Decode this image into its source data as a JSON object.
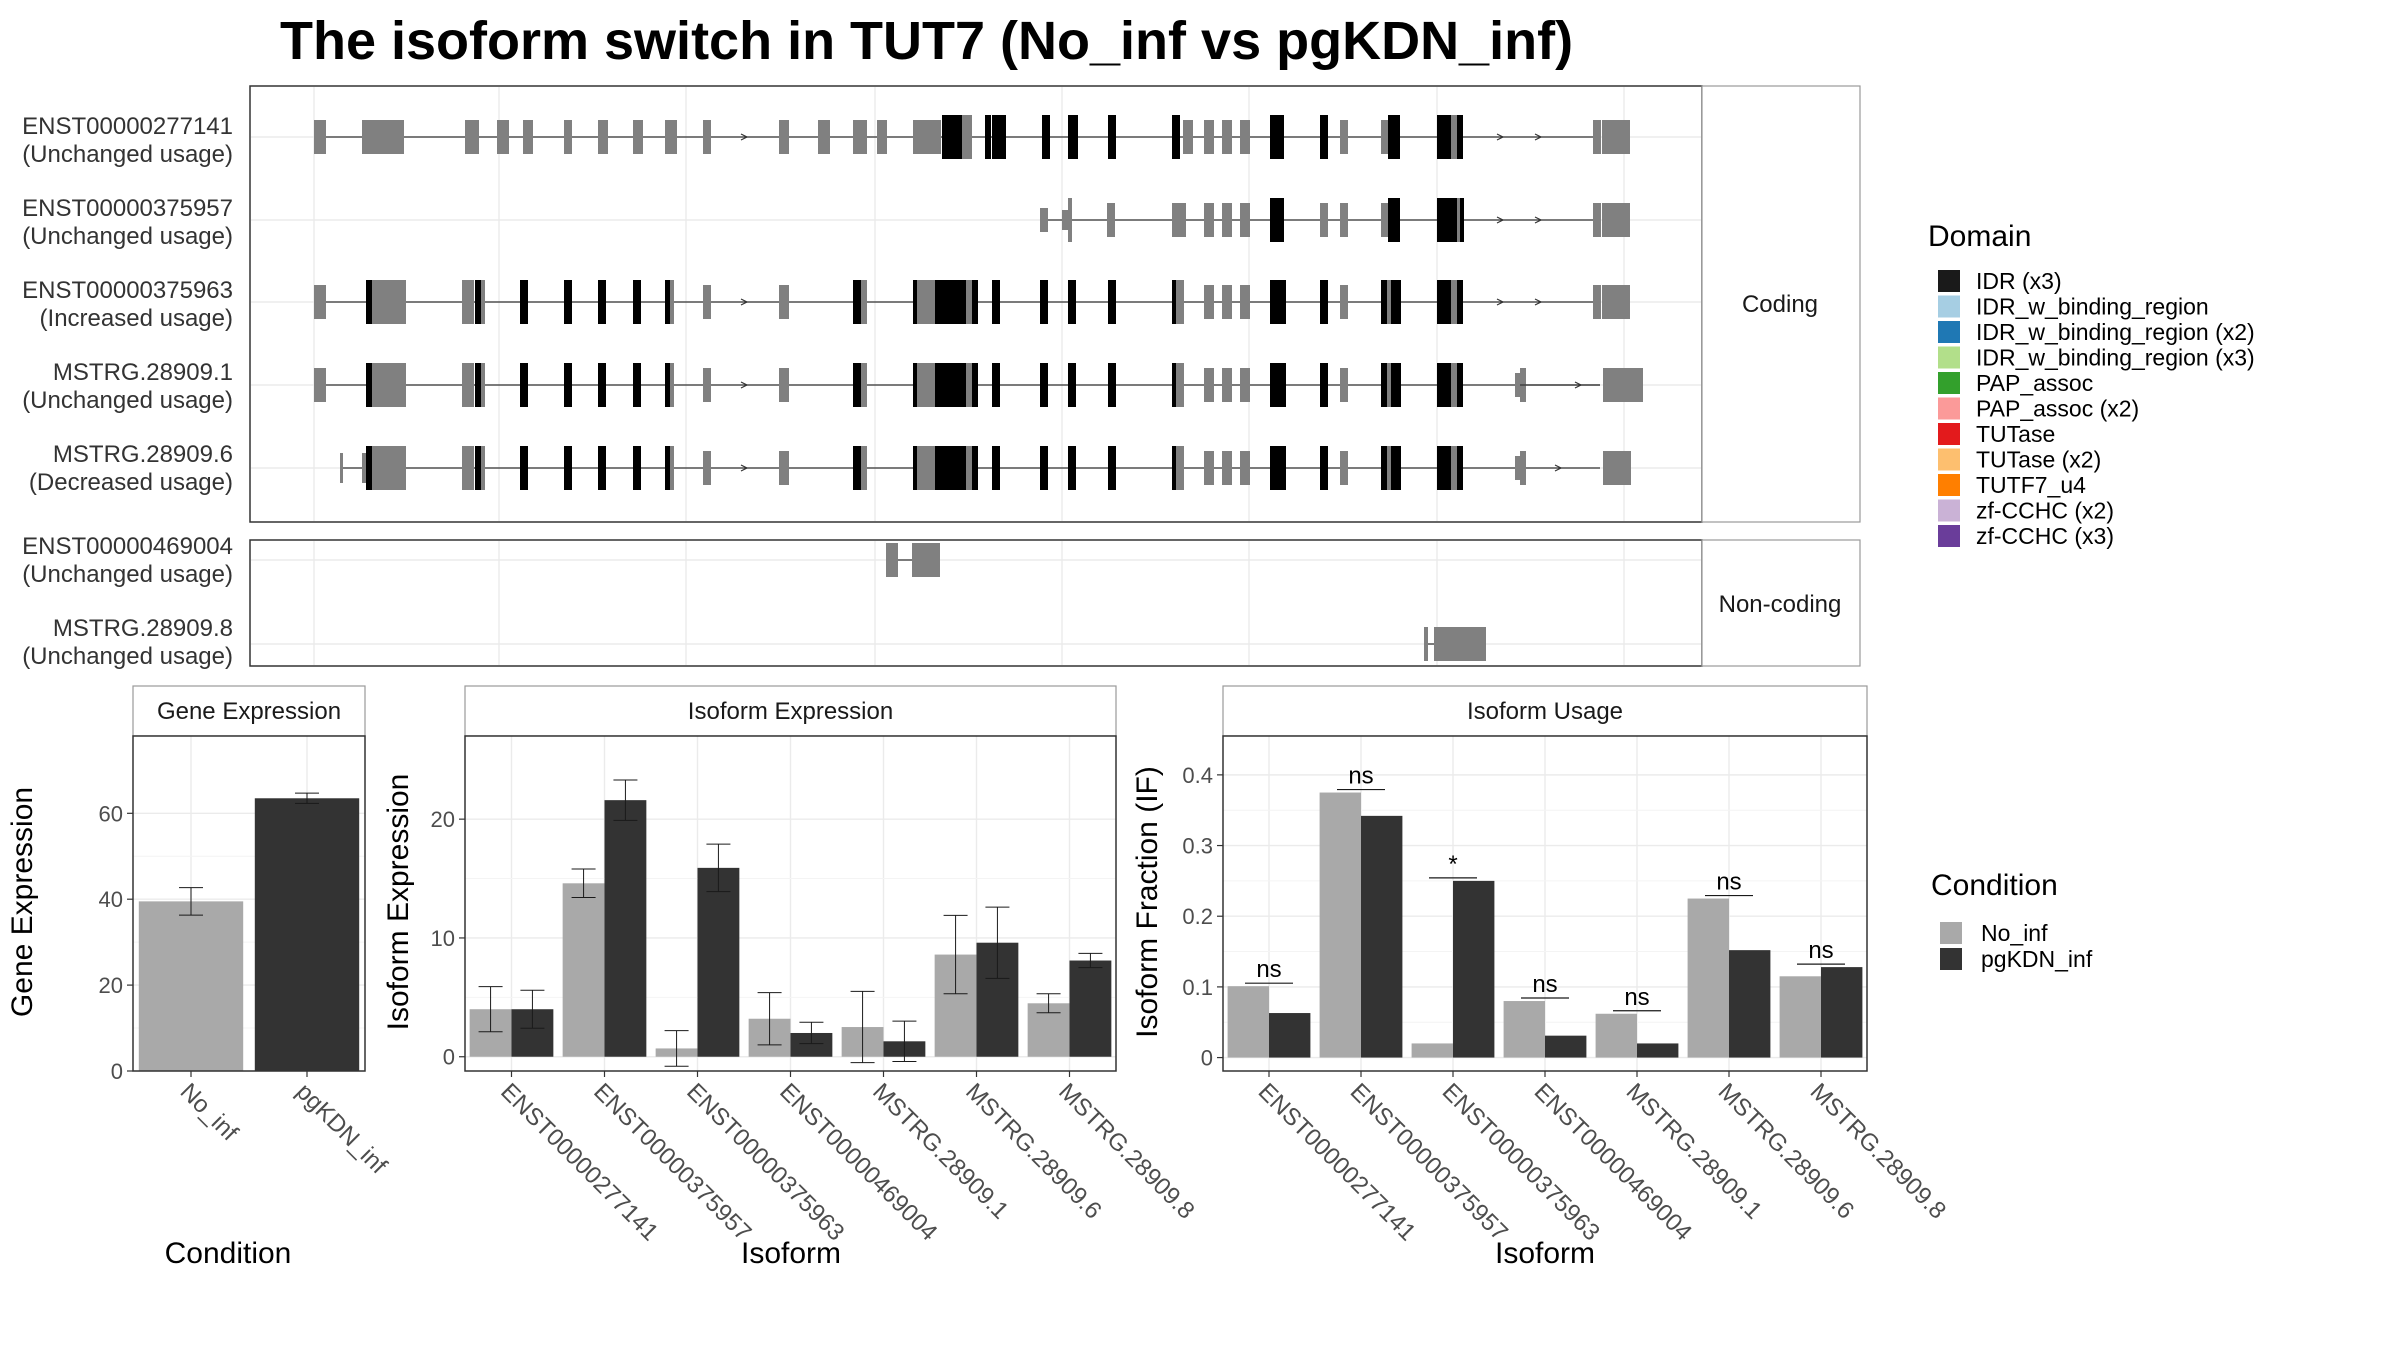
{
  "title": "The isoform switch in TUT7 (No_inf vs pgKDN_inf)",
  "transcript_panel": {
    "facets": [
      "Coding",
      "Non-coding"
    ],
    "transcripts": [
      {
        "name": "ENST00000277141",
        "usage": "(Unchanged usage)",
        "group": "Coding"
      },
      {
        "name": "ENST00000375957",
        "usage": "(Unchanged usage)",
        "group": "Coding"
      },
      {
        "name": "ENST00000375963",
        "usage": "(Increased usage)",
        "group": "Coding"
      },
      {
        "name": "MSTRG.28909.1",
        "usage": "(Unchanged usage)",
        "group": "Coding"
      },
      {
        "name": "MSTRG.28909.6",
        "usage": "(Decreased usage)",
        "group": "Coding"
      },
      {
        "name": "ENST00000469004",
        "usage": "(Unchanged usage)",
        "group": "Non-coding"
      },
      {
        "name": "MSTRG.28909.8",
        "usage": "(Unchanged usage)",
        "group": "Non-coding"
      }
    ]
  },
  "domain_legend": {
    "title": "Domain",
    "items": [
      {
        "label": "IDR (x3)",
        "color": "#1a1a1a"
      },
      {
        "label": "IDR_w_binding_region",
        "color": "#a6cee3"
      },
      {
        "label": "IDR_w_binding_region (x2)",
        "color": "#1f78b4"
      },
      {
        "label": "IDR_w_binding_region (x3)",
        "color": "#b2df8a"
      },
      {
        "label": "PAP_assoc",
        "color": "#33a02c"
      },
      {
        "label": "PAP_assoc (x2)",
        "color": "#fb9a99"
      },
      {
        "label": "TUTase",
        "color": "#e31a1c"
      },
      {
        "label": "TUTase (x2)",
        "color": "#fdbf6f"
      },
      {
        "label": "TUTF7_u4",
        "color": "#ff7f00"
      },
      {
        "label": "zf-CCHC (x2)",
        "color": "#cab2d6"
      },
      {
        "label": "zf-CCHC (x3)",
        "color": "#6a3d9a"
      }
    ]
  },
  "condition_legend": {
    "title": "Condition",
    "items": [
      {
        "label": "No_inf",
        "color": "#a9a9a9"
      },
      {
        "label": "pgKDN_inf",
        "color": "#333333"
      }
    ]
  },
  "chart_data": [
    {
      "type": "bar",
      "title": "Gene Expression",
      "xlabel": "Condition",
      "ylabel": "Gene Expression",
      "categories": [
        "No_inf",
        "pgKDN_inf"
      ],
      "values": [
        39.5,
        63.5
      ],
      "errors": [
        3.2,
        1.2
      ],
      "ylim": [
        0,
        78
      ],
      "yticks": [
        0,
        20,
        40,
        60
      ]
    },
    {
      "type": "bar",
      "title": "Isoform Expression",
      "xlabel": "Isoform",
      "ylabel": "Isoform Expression",
      "categories": [
        "ENST00000277141",
        "ENST00000375957",
        "ENST00000375963",
        "ENST00000469004",
        "MSTRG.28909.1",
        "MSTRG.28909.6",
        "MSTRG.28909.8"
      ],
      "series": [
        {
          "name": "No_inf",
          "values": [
            4.0,
            14.6,
            0.7,
            3.2,
            2.5,
            8.6,
            4.5
          ],
          "errors": [
            1.9,
            1.2,
            1.5,
            2.2,
            3.0,
            3.3,
            0.8
          ]
        },
        {
          "name": "pgKDN_inf",
          "values": [
            4.0,
            21.6,
            15.9,
            2.0,
            1.3,
            9.6,
            8.1
          ],
          "errors": [
            1.6,
            1.7,
            2.0,
            0.9,
            1.7,
            3.0,
            0.6
          ]
        }
      ],
      "ylim": [
        -1.2,
        27
      ],
      "yticks": [
        0,
        10,
        20
      ]
    },
    {
      "type": "bar",
      "title": "Isoform Usage",
      "xlabel": "Isoform",
      "ylabel": "Isoform Fraction (IF)",
      "categories": [
        "ENST00000277141",
        "ENST00000375957",
        "ENST00000375963",
        "ENST00000469004",
        "MSTRG.28909.1",
        "MSTRG.28909.6",
        "MSTRG.28909.8"
      ],
      "series": [
        {
          "name": "No_inf",
          "values": [
            0.101,
            0.375,
            0.02,
            0.08,
            0.062,
            0.225,
            0.115
          ]
        },
        {
          "name": "pgKDN_inf",
          "values": [
            0.063,
            0.342,
            0.25,
            0.031,
            0.02,
            0.152,
            0.128
          ]
        }
      ],
      "significance": [
        "ns",
        "ns",
        "*",
        "ns",
        "ns",
        "ns",
        "ns"
      ],
      "ylim": [
        -0.019,
        0.455
      ],
      "yticks": [
        0.0,
        0.1,
        0.2,
        0.3,
        0.4
      ]
    }
  ]
}
